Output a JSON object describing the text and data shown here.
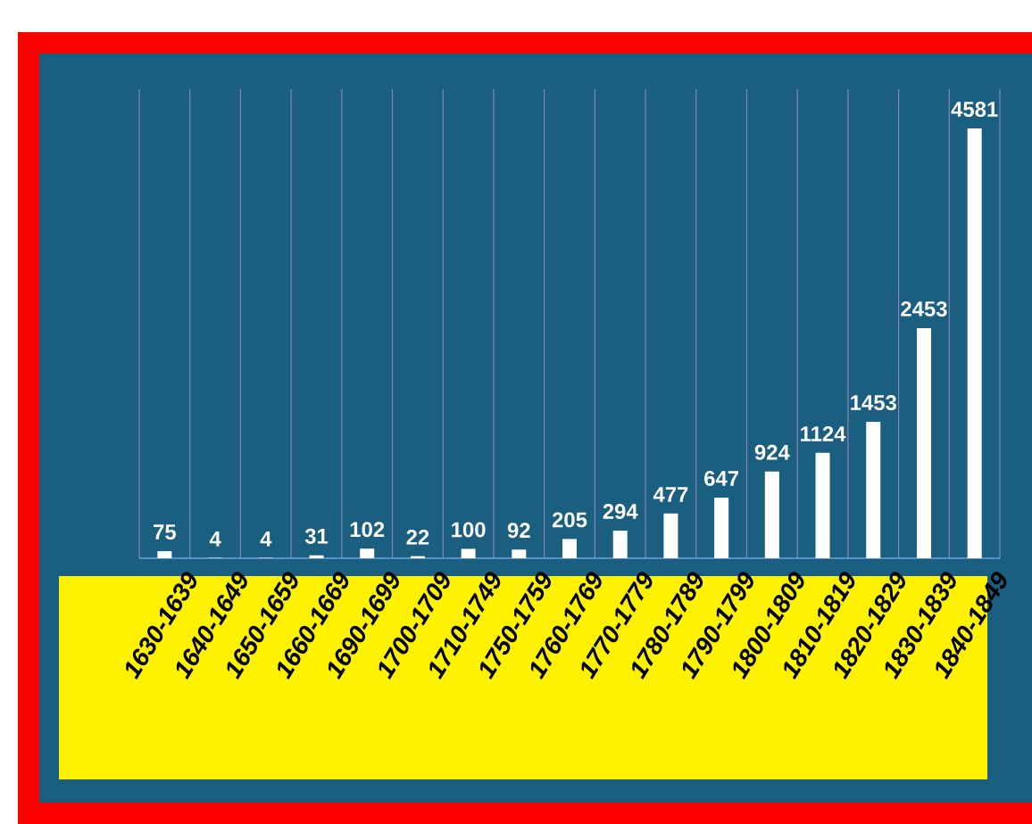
{
  "chart_data": {
    "type": "bar",
    "categories": [
      "1630-1639",
      "1640-1649",
      "1650-1659",
      "1660-1669",
      "1690-1699",
      "1700-1709",
      "1710-1749",
      "1750-1759",
      "1760-1769",
      "1770-1779",
      "1780-1789",
      "1790-1799",
      "1800-1809",
      "1810-1819",
      "1820-1829",
      "1830-1839",
      "1840-1849"
    ],
    "values": [
      75,
      4,
      4,
      31,
      102,
      22,
      100,
      92,
      205,
      294,
      477,
      647,
      924,
      1124,
      1453,
      2453,
      4581
    ],
    "color": "#ffffff",
    "ylim": [
      0,
      5000
    ],
    "data_labels": true,
    "grid": "x",
    "tick_labels": "x"
  }
}
